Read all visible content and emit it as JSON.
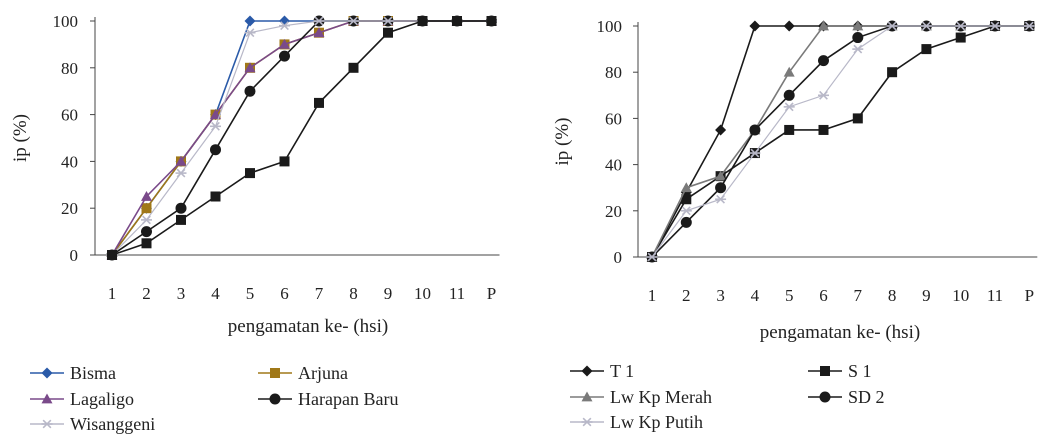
{
  "chart_data": [
    {
      "type": "line",
      "title": "",
      "xlabel": "pengamatan ke- (hsi)",
      "ylabel": "ip (%)",
      "categories": [
        "1",
        "2",
        "3",
        "4",
        "5",
        "6",
        "7",
        "8",
        "9",
        "10",
        "11",
        "P"
      ],
      "yticks": [
        "0",
        "20",
        "40",
        "60",
        "80",
        "100"
      ],
      "ylim": [
        0,
        100
      ],
      "grid": false,
      "legend_position": "bottom",
      "series": [
        {
          "name": "Bisma",
          "marker": "diamond",
          "color": "#2a5aa8",
          "values": [
            0,
            20,
            40,
            60,
            100,
            100,
            100,
            100,
            100,
            100,
            100,
            100
          ]
        },
        {
          "name": "Arjuna",
          "marker": "square",
          "color": "#a07818",
          "values": [
            0,
            20,
            40,
            60,
            80,
            90,
            95,
            100,
            100,
            100,
            100,
            100
          ]
        },
        {
          "name": "Lagaligo",
          "marker": "triangle",
          "color": "#7a4a8a",
          "values": [
            0,
            25,
            40,
            60,
            80,
            90,
            95,
            100,
            100,
            100,
            100,
            100
          ]
        },
        {
          "name": "Harapan Baru",
          "marker": "circle",
          "color": "#1a1a1a",
          "values": [
            0,
            10,
            20,
            45,
            70,
            85,
            100,
            100,
            100,
            100,
            100,
            100
          ]
        },
        {
          "name": "Wisanggeni",
          "marker": "star",
          "color": "#b8b8c8",
          "values": [
            0,
            15,
            35,
            55,
            95,
            98,
            100,
            100,
            100,
            100,
            100,
            100
          ]
        },
        {
          "name": "",
          "marker": "square",
          "color": "#1a1a1a",
          "values": [
            0,
            5,
            15,
            25,
            35,
            40,
            65,
            80,
            95,
            100,
            100,
            100
          ]
        }
      ]
    },
    {
      "type": "line",
      "title": "",
      "xlabel": "pengamatan ke- (hsi)",
      "ylabel": "ip (%)",
      "categories": [
        "1",
        "2",
        "3",
        "4",
        "5",
        "6",
        "7",
        "8",
        "9",
        "10",
        "11",
        "P"
      ],
      "yticks": [
        "0",
        "20",
        "40",
        "60",
        "80",
        "100"
      ],
      "ylim": [
        0,
        100
      ],
      "grid": false,
      "legend_position": "bottom",
      "series": [
        {
          "name": "T 1",
          "marker": "diamond",
          "color": "#1a1a1a",
          "values": [
            0,
            28,
            55,
            100,
            100,
            100,
            100,
            100,
            100,
            100,
            100,
            100
          ]
        },
        {
          "name": "S 1",
          "marker": "square",
          "color": "#1a1a1a",
          "values": [
            0,
            25,
            35,
            45,
            55,
            55,
            60,
            80,
            90,
            95,
            100,
            100
          ]
        },
        {
          "name": "Lw Kp Merah",
          "marker": "triangle",
          "color": "#7a7a7a",
          "values": [
            0,
            30,
            35,
            55,
            80,
            100,
            100,
            100,
            100,
            100,
            100,
            100
          ]
        },
        {
          "name": "SD 2",
          "marker": "circle",
          "color": "#1a1a1a",
          "values": [
            0,
            15,
            30,
            55,
            70,
            85,
            95,
            100,
            100,
            100,
            100,
            100
          ]
        },
        {
          "name": "Lw Kp Putih",
          "marker": "star",
          "color": "#b8b8c8",
          "values": [
            0,
            20,
            25,
            45,
            65,
            70,
            90,
            100,
            100,
            100,
            100,
            100
          ]
        }
      ]
    }
  ]
}
